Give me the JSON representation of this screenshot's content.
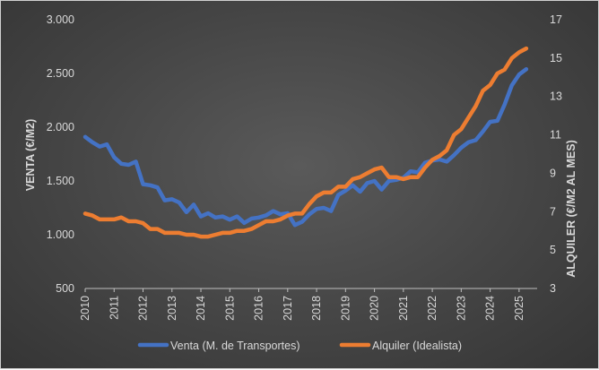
{
  "chart_data": {
    "type": "line",
    "title": "",
    "xlabel": "",
    "ylabel": "VENTA (€/M2)",
    "y2label": "ALQUILER (€/M2 AL MES)",
    "ylim": [
      500,
      3000
    ],
    "y2lim": [
      3,
      17
    ],
    "xlim": [
      2010,
      2025.5
    ],
    "y_ticks": [
      "500",
      "1.000",
      "1.500",
      "2.000",
      "2.500",
      "3.000"
    ],
    "y2_ticks": [
      "3",
      "5",
      "7",
      "9",
      "11",
      "13",
      "15",
      "17"
    ],
    "x_ticks": [
      "2010",
      "2011",
      "2012",
      "2013",
      "2014",
      "2015",
      "2016",
      "2017",
      "2018",
      "2019",
      "2020",
      "2021",
      "2022",
      "2023",
      "2024",
      "2025"
    ],
    "grid": false,
    "legend_position": "bottom",
    "series": [
      {
        "name": "Venta (M. de Transportes)",
        "axis": "left",
        "color": "#4472c4",
        "x": [
          2010.0,
          2010.25,
          2010.5,
          2010.75,
          2011.0,
          2011.25,
          2011.5,
          2011.75,
          2012.0,
          2012.25,
          2012.5,
          2012.75,
          2013.0,
          2013.25,
          2013.5,
          2013.75,
          2014.0,
          2014.25,
          2014.5,
          2014.75,
          2015.0,
          2015.25,
          2015.5,
          2015.75,
          2016.0,
          2016.25,
          2016.5,
          2016.75,
          2017.0,
          2017.25,
          2017.5,
          2017.75,
          2018.0,
          2018.25,
          2018.5,
          2018.75,
          2019.0,
          2019.25,
          2019.5,
          2019.75,
          2020.0,
          2020.25,
          2020.5,
          2020.75,
          2021.0,
          2021.25,
          2021.5,
          2021.75,
          2022.0,
          2022.25,
          2022.5,
          2022.75,
          2023.0,
          2023.25,
          2023.5,
          2023.75,
          2024.0,
          2024.25,
          2024.5,
          2024.75,
          2025.0,
          2025.25
        ],
        "values": [
          1910,
          1860,
          1820,
          1840,
          1720,
          1660,
          1650,
          1680,
          1470,
          1460,
          1440,
          1320,
          1330,
          1300,
          1210,
          1280,
          1170,
          1200,
          1160,
          1170,
          1140,
          1170,
          1110,
          1150,
          1160,
          1180,
          1220,
          1190,
          1200,
          1090,
          1120,
          1190,
          1240,
          1250,
          1220,
          1370,
          1410,
          1460,
          1400,
          1480,
          1500,
          1420,
          1500,
          1510,
          1530,
          1590,
          1580,
          1670,
          1690,
          1700,
          1680,
          1740,
          1810,
          1860,
          1880,
          1960,
          2050,
          2060,
          2210,
          2390,
          2490,
          2540
        ]
      },
      {
        "name": "Alquiler (Idealista)",
        "axis": "right",
        "color": "#ed7d31",
        "x": [
          2010.0,
          2010.25,
          2010.5,
          2010.75,
          2011.0,
          2011.25,
          2011.5,
          2011.75,
          2012.0,
          2012.25,
          2012.5,
          2012.75,
          2013.0,
          2013.25,
          2013.5,
          2013.75,
          2014.0,
          2014.25,
          2014.5,
          2014.75,
          2015.0,
          2015.25,
          2015.5,
          2015.75,
          2016.0,
          2016.25,
          2016.5,
          2016.75,
          2017.0,
          2017.25,
          2017.5,
          2017.75,
          2018.0,
          2018.25,
          2018.5,
          2018.75,
          2019.0,
          2019.25,
          2019.5,
          2019.75,
          2020.0,
          2020.25,
          2020.5,
          2020.75,
          2021.0,
          2021.25,
          2021.5,
          2021.75,
          2022.0,
          2022.25,
          2022.5,
          2022.75,
          2023.0,
          2023.25,
          2023.5,
          2023.75,
          2024.0,
          2024.25,
          2024.5,
          2024.75,
          2025.0,
          2025.25
        ],
        "values": [
          6.9,
          6.8,
          6.6,
          6.6,
          6.6,
          6.7,
          6.5,
          6.5,
          6.4,
          6.1,
          6.1,
          5.9,
          5.9,
          5.9,
          5.8,
          5.8,
          5.7,
          5.7,
          5.8,
          5.9,
          5.9,
          6.0,
          6.0,
          6.1,
          6.3,
          6.5,
          6.5,
          6.6,
          6.8,
          6.9,
          6.9,
          7.4,
          7.8,
          8.0,
          8.0,
          8.3,
          8.3,
          8.7,
          8.8,
          9.0,
          9.2,
          9.3,
          8.8,
          8.8,
          8.7,
          8.8,
          8.8,
          9.3,
          9.7,
          9.9,
          10.2,
          11.0,
          11.3,
          11.9,
          12.5,
          13.3,
          13.6,
          14.2,
          14.4,
          15.0,
          15.3,
          15.5
        ]
      }
    ]
  }
}
